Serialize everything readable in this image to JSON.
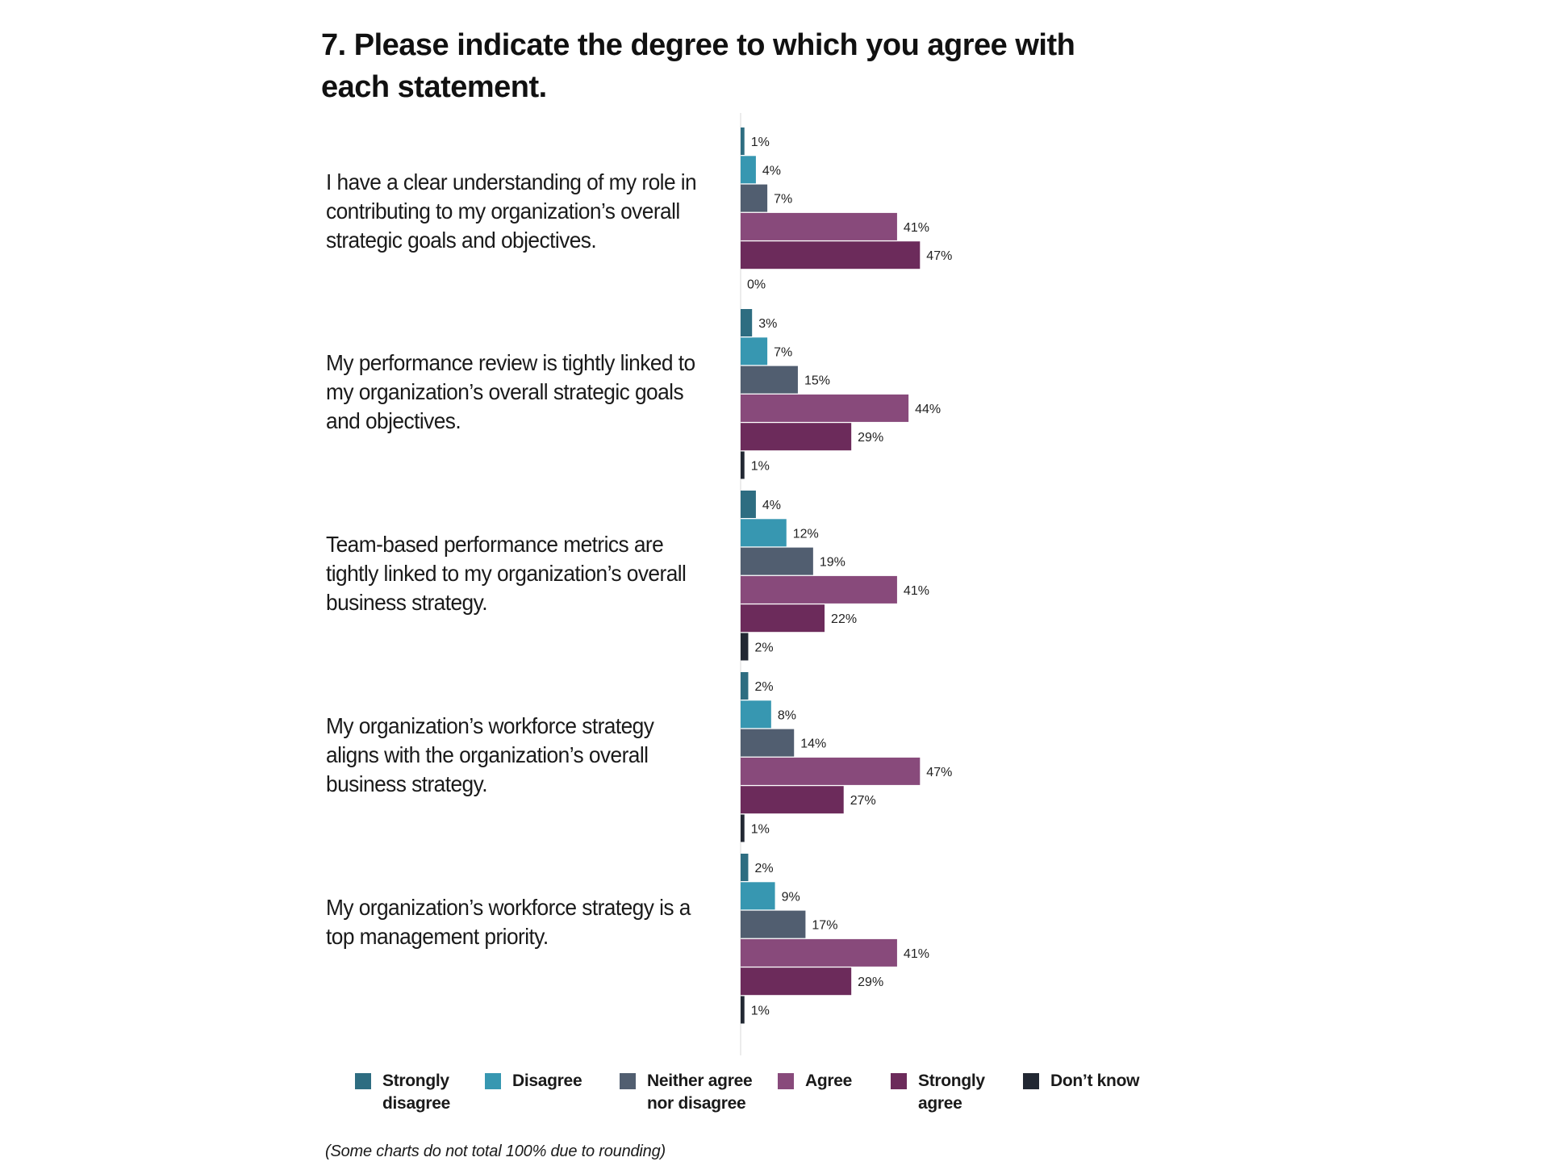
{
  "title": "7. Please indicate the degree to which you agree with each statement.",
  "note": "(Some charts do not total 100% due to rounding)",
  "colors": {
    "strongly_disagree": "#2e6d81",
    "disagree": "#3797b1",
    "neither": "#515e70",
    "agree": "#884a7b",
    "strongly_agree": "#6c2b5b",
    "dont_know": "#222833",
    "axis": "#d8d8d8"
  },
  "chart_data": {
    "type": "bar",
    "orientation": "horizontal",
    "title": "7. Please indicate the degree to which you agree with each statement.",
    "categories": [
      "I have a clear understanding of my role in contributing to my organization’s overall strategic goals and objectives.",
      "My performance review is tightly linked to my organization’s overall strategic goals and objectives.",
      "Team-based performance metrics are tightly linked to my organization’s overall business strategy.",
      "My organization’s workforce strategy aligns with the organization’s overall business strategy.",
      "My organization’s workforce strategy is a top management priority."
    ],
    "series": [
      {
        "name": "Strongly disagree",
        "color": "#2e6d81",
        "values": [
          1,
          3,
          4,
          2,
          2
        ]
      },
      {
        "name": "Disagree",
        "color": "#3797b1",
        "values": [
          4,
          7,
          12,
          8,
          9
        ]
      },
      {
        "name": "Neither agree nor disagree",
        "color": "#515e70",
        "values": [
          7,
          15,
          19,
          14,
          17
        ]
      },
      {
        "name": "Agree",
        "color": "#884a7b",
        "values": [
          41,
          44,
          41,
          47,
          41
        ]
      },
      {
        "name": "Strongly agree",
        "color": "#6c2b5b",
        "values": [
          47,
          29,
          22,
          27,
          29
        ]
      },
      {
        "name": "Don’t know",
        "color": "#222833",
        "values": [
          0,
          1,
          2,
          1,
          1
        ]
      }
    ],
    "value_labels": [
      [
        "1%",
        "4%",
        "7%",
        "41%",
        "47%",
        "0%"
      ],
      [
        "3%",
        "7%",
        "15%",
        "44%",
        "29%",
        "1%"
      ],
      [
        "4%",
        "12%",
        "19%",
        "41%",
        "22%",
        "2%"
      ],
      [
        "2%",
        "8%",
        "14%",
        "47%",
        "27%",
        "1%"
      ],
      [
        "2%",
        "9%",
        "17%",
        "41%",
        "29%",
        "1%"
      ]
    ],
    "value_unit": "%",
    "xlim": [
      0,
      100
    ],
    "grid": false,
    "legend_position": "bottom"
  },
  "legend": [
    {
      "label": "Strongly\ndisagree",
      "color": "#2e6d81"
    },
    {
      "label": "Disagree",
      "color": "#3797b1"
    },
    {
      "label": "Neither agree\nnor disagree",
      "color": "#515e70"
    },
    {
      "label": "Agree",
      "color": "#884a7b"
    },
    {
      "label": "Strongly\nagree",
      "color": "#6c2b5b"
    },
    {
      "label": "Don’t know",
      "color": "#222833"
    }
  ]
}
